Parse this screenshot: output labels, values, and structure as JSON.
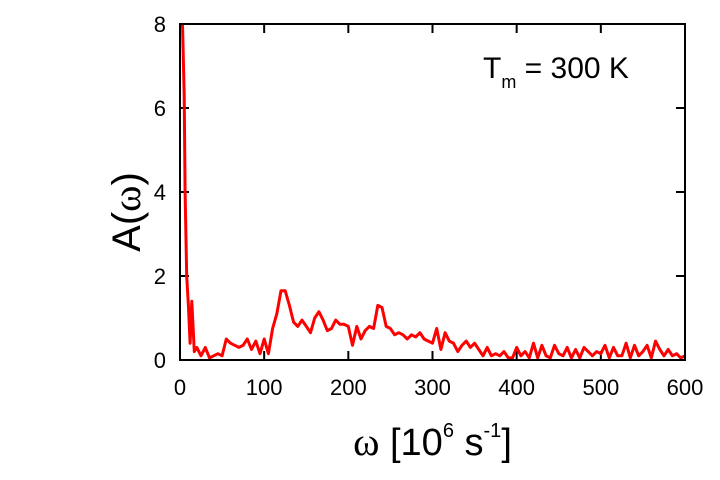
{
  "chart_data": {
    "type": "line",
    "xlabel": {
      "symbol": "ω",
      "prefix": " [10",
      "exp": "6",
      "unit": " s",
      "unit_exp": "-1",
      "suffix": "]"
    },
    "ylabel": {
      "main": "A(",
      "symbol": "ω",
      "close": ")"
    },
    "annotation": {
      "main": "T",
      "sub": "m",
      "rest": " = 300 K"
    },
    "xlim": [
      0,
      600
    ],
    "ylim": [
      0,
      8
    ],
    "xticks": [
      0,
      100,
      200,
      300,
      400,
      500,
      600
    ],
    "yticks": [
      0,
      2,
      4,
      6,
      8
    ],
    "grid": false,
    "line_color": "#ff0000",
    "series": [
      {
        "x": [
          3,
          5,
          6,
          8,
          10,
          12,
          14,
          17,
          20,
          25,
          30,
          35,
          40,
          45,
          50,
          55,
          60,
          65,
          70,
          75,
          80,
          85,
          90,
          95,
          100,
          105,
          110,
          115,
          120,
          125,
          130,
          135,
          140,
          145,
          150,
          155,
          160,
          165,
          170,
          175,
          180,
          185,
          190,
          195,
          200,
          205,
          210,
          215,
          220,
          225,
          230,
          235,
          240,
          245,
          250,
          255,
          260,
          265,
          270,
          275,
          280,
          285,
          290,
          295,
          300,
          305,
          310,
          315,
          320,
          325,
          330,
          335,
          340,
          345,
          350,
          355,
          360,
          365,
          370,
          375,
          380,
          385,
          390,
          395,
          400,
          405,
          410,
          415,
          420,
          425,
          430,
          435,
          440,
          445,
          450,
          455,
          460,
          465,
          470,
          475,
          480,
          485,
          490,
          495,
          500,
          505,
          510,
          515,
          520,
          525,
          530,
          535,
          540,
          545,
          550,
          555,
          560,
          565,
          570,
          575,
          580,
          585,
          590,
          595,
          600
        ],
        "y": [
          8.0,
          6.3,
          4.0,
          2.0,
          1.3,
          0.4,
          1.4,
          0.2,
          0.3,
          0.1,
          0.3,
          0.05,
          0.1,
          0.15,
          0.1,
          0.5,
          0.4,
          0.35,
          0.3,
          0.35,
          0.5,
          0.25,
          0.45,
          0.15,
          0.5,
          0.15,
          0.75,
          1.1,
          1.65,
          1.65,
          1.3,
          0.9,
          0.8,
          0.95,
          0.8,
          0.65,
          1.0,
          1.15,
          0.95,
          0.7,
          0.75,
          0.95,
          0.85,
          0.85,
          0.8,
          0.35,
          0.8,
          0.5,
          0.7,
          0.8,
          0.75,
          1.3,
          1.25,
          0.8,
          0.75,
          0.6,
          0.65,
          0.6,
          0.5,
          0.6,
          0.55,
          0.65,
          0.5,
          0.45,
          0.4,
          0.75,
          0.25,
          0.65,
          0.45,
          0.4,
          0.2,
          0.35,
          0.45,
          0.3,
          0.4,
          0.25,
          0.1,
          0.3,
          0.1,
          0.15,
          0.1,
          0.2,
          0.05,
          0.05,
          0.3,
          0.1,
          0.2,
          0.05,
          0.4,
          0.05,
          0.35,
          0.1,
          0.05,
          0.35,
          0.15,
          0.1,
          0.3,
          0.05,
          0.25,
          0.05,
          0.3,
          0.2,
          0.1,
          0.2,
          0.15,
          0.35,
          0.05,
          0.3,
          0.1,
          0.1,
          0.4,
          0.05,
          0.35,
          0.1,
          0.2,
          0.35,
          0.05,
          0.45,
          0.25,
          0.1,
          0.25,
          0.1,
          0.15,
          0.05,
          0.1
        ]
      }
    ]
  }
}
